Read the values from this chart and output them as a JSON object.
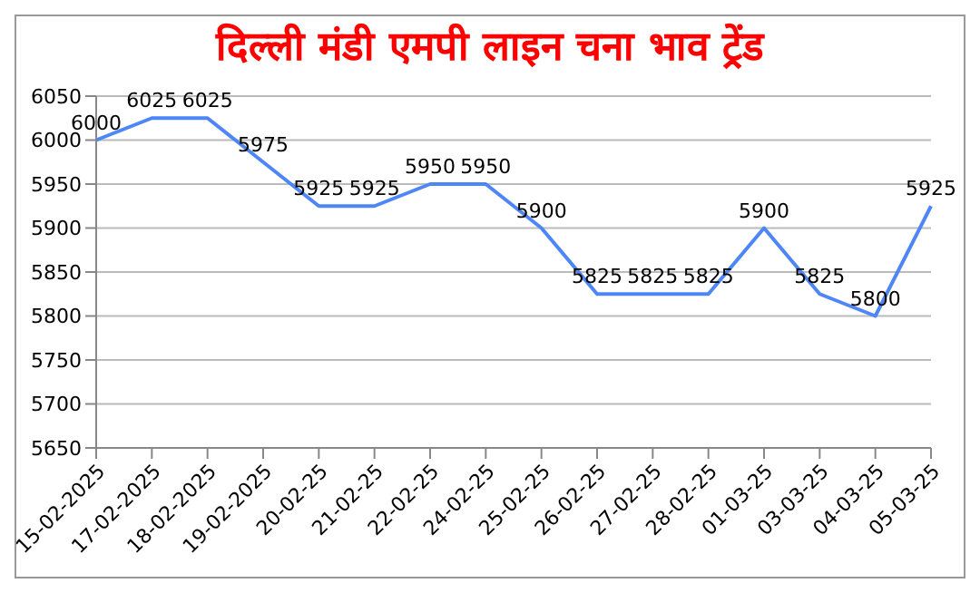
{
  "chart_data": {
    "type": "line",
    "title": "दिल्ली मंडी एमपी लाइन चना भाव ट्रेंड",
    "categories": [
      "15-02-2025",
      "17-02-2025",
      "18-02-2025",
      "19-02-2025",
      "20-02-25",
      "21-02-25",
      "22-02-25",
      "24-02-25",
      "25-02-25",
      "26-02-25",
      "27-02-25",
      "28-02-25",
      "01-03-25",
      "03-03-25",
      "04-03-25",
      "05-03-25"
    ],
    "series": [
      {
        "color": "#4f86f7",
        "values": [
          6000,
          6025,
          6025,
          5975,
          5925,
          5925,
          5950,
          5950,
          5900,
          5825,
          5825,
          5825,
          5900,
          5825,
          5800,
          5925
        ]
      }
    ],
    "ylim": [
      5650,
      6050
    ],
    "yticks": [
      5650,
      5700,
      5750,
      5800,
      5850,
      5900,
      5950,
      6000,
      6050
    ],
    "grid": "y",
    "data_labels": true,
    "marker": "none",
    "line_style": "solid"
  }
}
